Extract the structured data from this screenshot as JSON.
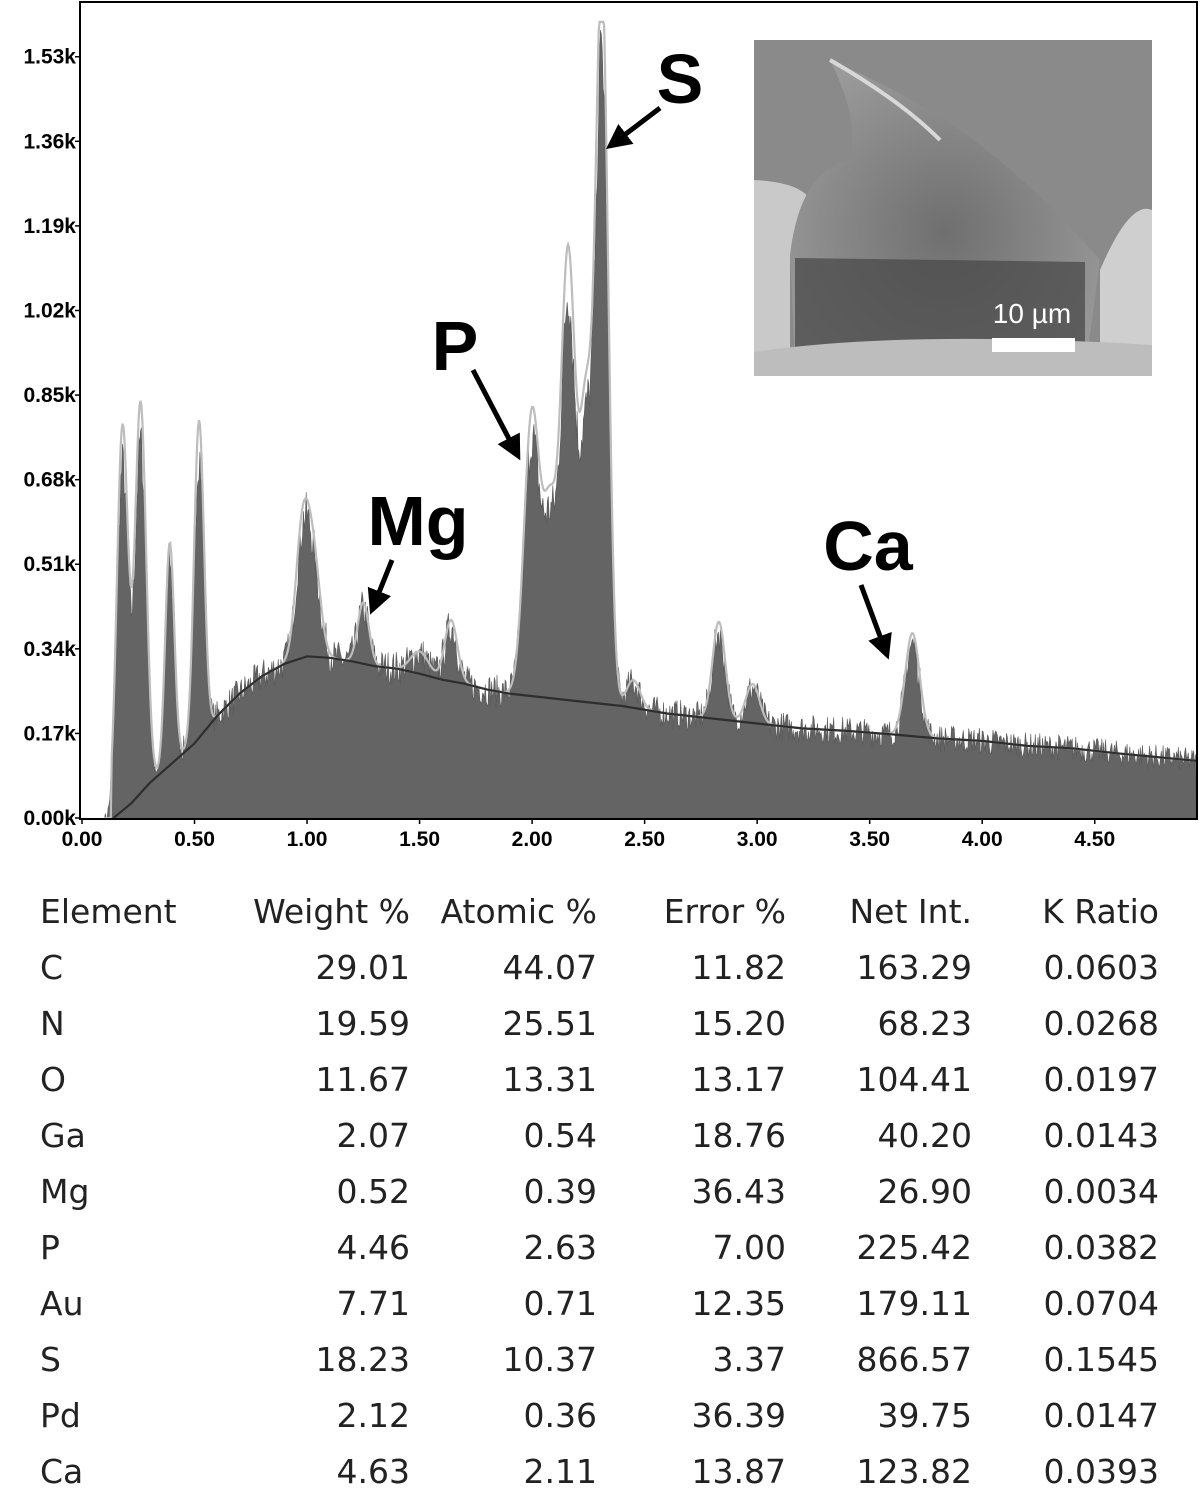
{
  "chart_data": {
    "type": "area",
    "title": "",
    "xlabel": "",
    "ylabel": "",
    "xlim": [
      0.0,
      4.95
    ],
    "ylim": [
      0,
      1640
    ],
    "x_tick_labels": [
      "0.00",
      "0.50",
      "1.00",
      "1.50",
      "2.00",
      "2.50",
      "3.00",
      "3.50",
      "4.00",
      "4.50"
    ],
    "x_ticks": [
      0.0,
      0.5,
      1.0,
      1.5,
      2.0,
      2.5,
      3.0,
      3.5,
      4.0,
      4.5
    ],
    "y_tick_labels": [
      "0.00k",
      "0.17k",
      "0.34k",
      "0.51k",
      "0.68k",
      "0.85k",
      "1.02k",
      "1.19k",
      "1.36k",
      "1.53k"
    ],
    "y_ticks": [
      0,
      170,
      340,
      510,
      680,
      850,
      1020,
      1190,
      1360,
      1530
    ],
    "background": {
      "x": [
        0.14,
        0.22,
        0.3,
        0.4,
        0.5,
        0.6,
        0.7,
        0.8,
        0.9,
        1.0,
        1.1,
        1.2,
        1.3,
        1.4,
        1.5,
        1.6,
        1.7,
        1.8,
        1.9,
        2.0,
        2.2,
        2.4,
        2.6,
        2.8,
        3.0,
        3.2,
        3.4,
        3.6,
        3.8,
        4.0,
        4.2,
        4.4,
        4.6,
        4.95
      ],
      "y": [
        0,
        30,
        70,
        110,
        150,
        205,
        250,
        285,
        310,
        325,
        322,
        315,
        305,
        300,
        290,
        278,
        270,
        258,
        250,
        245,
        235,
        225,
        210,
        200,
        190,
        180,
        175,
        168,
        160,
        155,
        145,
        140,
        130,
        115
      ]
    },
    "peaks": [
      {
        "center": 0.18,
        "height": 690,
        "width": 0.025
      },
      {
        "center": 0.26,
        "height": 700,
        "width": 0.025
      },
      {
        "center": 0.39,
        "height": 400,
        "width": 0.02
      },
      {
        "center": 0.52,
        "height": 570,
        "width": 0.022
      },
      {
        "center": 0.98,
        "height": 230,
        "width": 0.03
      },
      {
        "center": 1.03,
        "height": 160,
        "width": 0.03
      },
      {
        "center": 1.25,
        "height": 110,
        "width": 0.025
      },
      {
        "center": 1.5,
        "height": 40,
        "width": 0.04
      },
      {
        "center": 1.64,
        "height": 110,
        "width": 0.028
      },
      {
        "center": 2.0,
        "height": 510,
        "width": 0.035
      },
      {
        "center": 2.08,
        "height": 310,
        "width": 0.03
      },
      {
        "center": 2.16,
        "height": 800,
        "width": 0.032
      },
      {
        "center": 2.24,
        "height": 500,
        "width": 0.028
      },
      {
        "center": 2.31,
        "height": 1290,
        "width": 0.028
      },
      {
        "center": 2.45,
        "height": 50,
        "width": 0.03
      },
      {
        "center": 2.83,
        "height": 175,
        "width": 0.028
      },
      {
        "center": 2.98,
        "height": 70,
        "width": 0.03
      },
      {
        "center": 3.69,
        "height": 185,
        "width": 0.032
      }
    ],
    "annotations": [
      {
        "text": "Mg",
        "x": 1.25,
        "y": 440
      },
      {
        "text": "P",
        "x": 2.01,
        "y": 745
      },
      {
        "text": "S",
        "x": 2.31,
        "y": 1400
      },
      {
        "text": "Ca",
        "x": 3.69,
        "y": 355
      }
    ],
    "inset": {
      "scale_bar": "10 µm"
    }
  },
  "table": {
    "headers": [
      "Element",
      "Weight %",
      "Atomic %",
      "Error %",
      "Net Int.",
      "K Ratio"
    ],
    "rows": [
      [
        "C",
        "29.01",
        "44.07",
        "11.82",
        "163.29",
        "0.0603"
      ],
      [
        "N",
        "19.59",
        "25.51",
        "15.20",
        "68.23",
        "0.0268"
      ],
      [
        "O",
        "11.67",
        "13.31",
        "13.17",
        "104.41",
        "0.0197"
      ],
      [
        "Ga",
        "2.07",
        "0.54",
        "18.76",
        "40.20",
        "0.0143"
      ],
      [
        "Mg",
        "0.52",
        "0.39",
        "36.43",
        "26.90",
        "0.0034"
      ],
      [
        "P",
        "4.46",
        "2.63",
        "7.00",
        "225.42",
        "0.0382"
      ],
      [
        "Au",
        "7.71",
        "0.71",
        "12.35",
        "179.11",
        "0.0704"
      ],
      [
        "S",
        "18.23",
        "10.37",
        "3.37",
        "866.57",
        "0.1545"
      ],
      [
        "Pd",
        "2.12",
        "0.36",
        "36.39",
        "39.75",
        "0.0147"
      ],
      [
        "Ca",
        "4.63",
        "2.11",
        "13.87",
        "123.82",
        "0.0393"
      ]
    ]
  }
}
